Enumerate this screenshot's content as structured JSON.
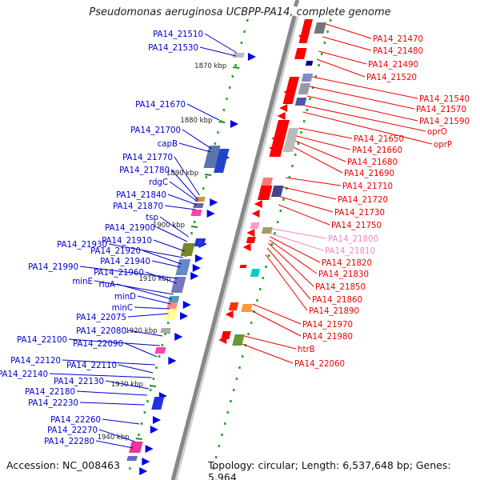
{
  "title": "Pseudomonas aeruginosa UCBPP-PA14, complete genome",
  "accession": "Accession: NC_008463",
  "topology": "Topology: circular; Length: 6,537,648 bp; Genes: 5,964",
  "colors": {
    "backbone": "#888888",
    "left_label": "#0000cc",
    "right_label": "#ee0000",
    "right_label_pale": "#ee88cc",
    "kbp_tick": "#228b22"
  },
  "kbp_ticks": [
    {
      "label": "1870 kbp"
    },
    {
      "label": "1880 kbp"
    },
    {
      "label": "1890 kbp"
    },
    {
      "label": "1900 kbp"
    },
    {
      "label": "1910 kbp"
    },
    {
      "label": "1920 kbp"
    },
    {
      "label": "1930 kbp"
    },
    {
      "label": "1940 kbp"
    }
  ],
  "left_labels": [
    "PA14_21510",
    "PA14_21530",
    "PA14_21670",
    "PA14_21700",
    "capB",
    "PA14_21770",
    "PA14_21780",
    "rdgC",
    "PA14_21840",
    "PA14_21870",
    "tsp",
    "PA14_21900",
    "PA14_21930",
    "PA14_21910",
    "PA14_21920",
    "PA14_21940",
    "PA14_21990",
    "PA14_21960",
    "minE",
    "rluA",
    "minD",
    "minC",
    "PA14_22075",
    "PA14_22080",
    "PA14_22090",
    "PA14_22100",
    "PA14_22120",
    "PA14_22110",
    "PA14_22140",
    "PA14_22130",
    "PA14_22180",
    "PA14_22230",
    "PA14_22260",
    "PA14_22270",
    "PA14_22280"
  ],
  "right_labels": [
    "PA14_21470",
    "PA14_21480",
    "PA14_21490",
    "PA14_21520",
    "PA14_21540",
    "PA14_21570",
    "PA14_21590",
    "oprO",
    "oprP",
    "PA14_21650",
    "PA14_21660",
    "PA14_21680",
    "PA14_21690",
    "PA14_21710",
    "PA14_21720",
    "PA14_21730",
    "PA14_21750",
    "PA14_21800",
    "PA14_21810",
    "PA14_21820",
    "PA14_21830",
    "PA14_21850",
    "PA14_21860",
    "PA14_21890",
    "PA14_21970",
    "PA14_21980",
    "htrB",
    "PA14_22060"
  ]
}
